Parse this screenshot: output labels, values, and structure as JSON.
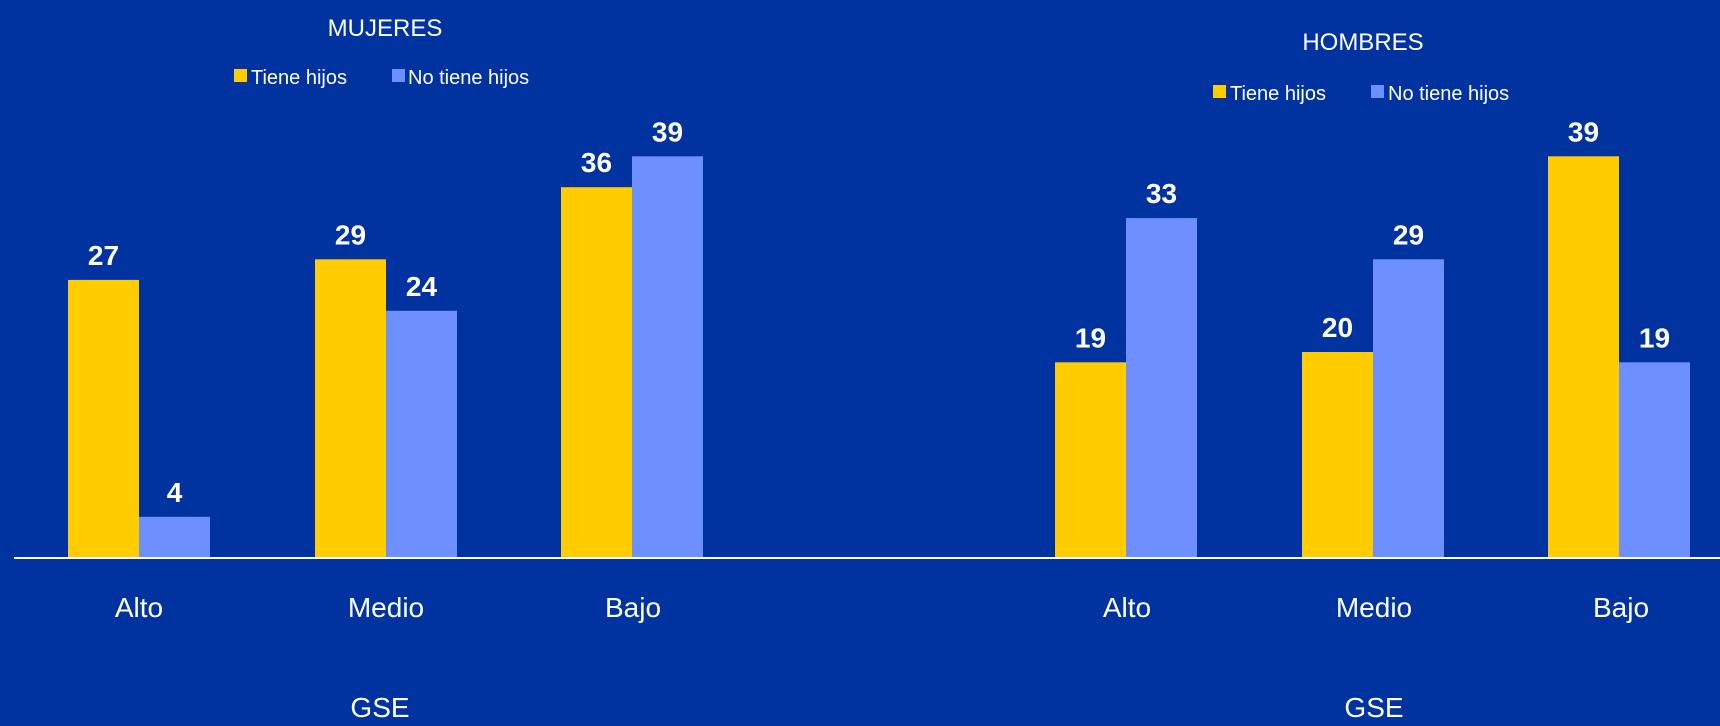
{
  "colors": {
    "background": "#0033A0",
    "tiene_hijos": "#FFCC00",
    "no_tiene_hijos": "#6E8FFF",
    "axis": "#FFFFFF",
    "text": "#FFFFFF"
  },
  "chart_data": [
    {
      "type": "bar",
      "title": "MUJERES",
      "xlabel": "GSE",
      "ylabel": "",
      "categories": [
        "Alto",
        "Medio",
        "Bajo"
      ],
      "series": [
        {
          "name": "Tiene hijos",
          "values": [
            27,
            29,
            36
          ]
        },
        {
          "name": "No tiene hijos",
          "values": [
            4,
            24,
            39
          ]
        }
      ],
      "ylim": [
        0,
        45
      ],
      "grid": false,
      "legend": "top"
    },
    {
      "type": "bar",
      "title": "HOMBRES",
      "xlabel": "GSE",
      "ylabel": "",
      "categories": [
        "Alto",
        "Medio",
        "Bajo"
      ],
      "series": [
        {
          "name": "Tiene hijos",
          "values": [
            19,
            20,
            39
          ]
        },
        {
          "name": "No tiene hijos",
          "values": [
            33,
            29,
            19
          ]
        }
      ],
      "ylim": [
        0,
        45
      ],
      "grid": false,
      "legend": "top"
    }
  ]
}
